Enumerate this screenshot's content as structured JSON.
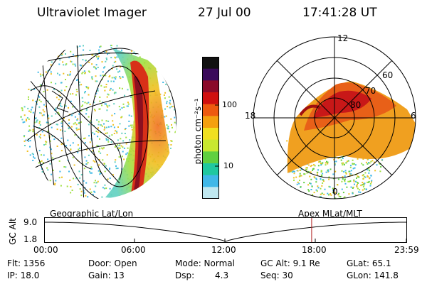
{
  "header": {
    "instrument": "Ultraviolet Imager",
    "date": "27 Jul 00",
    "time": "17:41:28 UT"
  },
  "colorbar": {
    "unit_label": "photon cm⁻²s⁻¹",
    "ticks": [
      "100",
      "10"
    ],
    "colors": [
      "#111111",
      "#3a0a5a",
      "#8a0a2a",
      "#d01010",
      "#ee5a10",
      "#f4a010",
      "#f0e020",
      "#c8e830",
      "#60d040",
      "#20c8a0",
      "#40b8e8",
      "#c0e8f0"
    ]
  },
  "left_map": {
    "caption": "Geographic Lat/Lon"
  },
  "right_map": {
    "caption": "Apex MLat/MLT",
    "mlt_labels": [
      "12",
      "18",
      "6",
      "0"
    ],
    "mlat_labels": [
      "60",
      "70",
      "80"
    ]
  },
  "altitude_plot": {
    "ylabel": "GC Alt",
    "ytick_top": "9.0",
    "ytick_bottom": "1.8",
    "xticks": [
      "00:00",
      "06:00",
      "12:00",
      "18:00",
      "23:59"
    ],
    "current_time_fraction": 0.738
  },
  "status": {
    "flt": "Flt: 1356",
    "ip": "IP: 18.0",
    "door": "Door: Open",
    "gain": "Gain: 13",
    "mode": "Mode: Normal",
    "dsp_label": "Dsp:",
    "dsp_value": "4.3",
    "gcalt": "GC Alt: 9.1 Re",
    "seq": "Seq: 30",
    "glat": "GLat: 65.1",
    "glon": "GLon: 141.8"
  }
}
